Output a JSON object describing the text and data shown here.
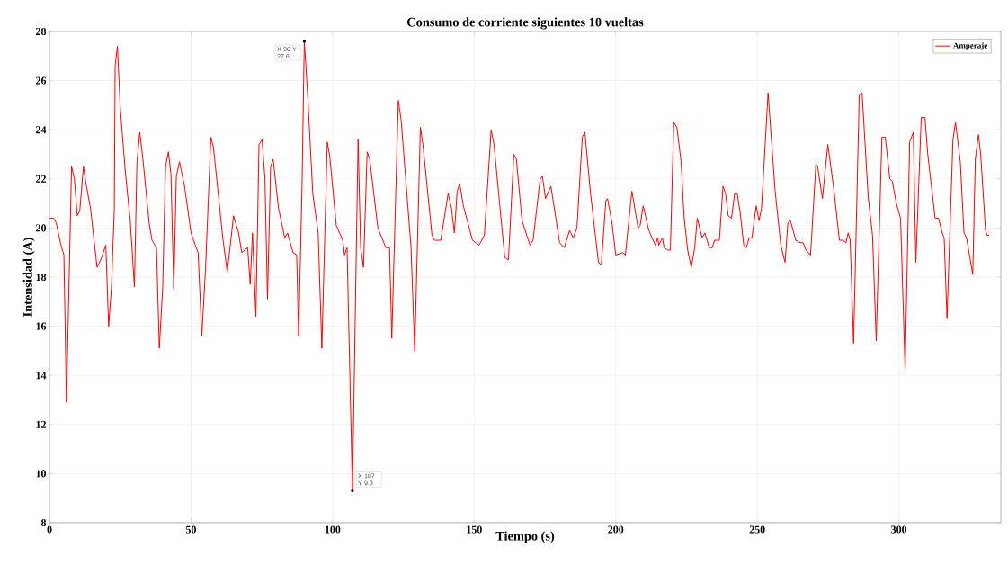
{
  "chart_data": {
    "type": "line",
    "title": "Consumo de corriente siguientes 10 vueltas",
    "xlabel": "Tiempo (s)",
    "ylabel": "Intensidad (A)",
    "x": [
      0,
      1.5,
      2.4,
      3.3,
      4.3,
      5.1,
      6,
      7.8,
      8.8,
      9.8,
      10.7,
      12,
      12.9,
      14.5,
      16.8,
      18.1,
      19.9,
      20.9,
      21.9,
      22.9,
      23.2,
      24,
      25,
      26.7,
      28.6,
      30,
      30.9,
      31.9,
      33,
      35.2,
      36.2,
      37.8,
      38.8,
      40,
      41,
      42,
      42.9,
      43.9,
      44.8,
      45.9,
      47.7,
      50,
      51.5,
      52.5,
      53.8,
      55.1,
      57,
      57.9,
      59.6,
      61.2,
      62.8,
      65,
      66.8,
      67.9,
      70,
      70.9,
      71.7,
      72.9,
      74,
      75.1,
      76.1,
      77,
      78.1,
      79,
      80.9,
      83.1,
      84.1,
      86,
      87.3,
      88,
      89.2,
      90,
      91.1,
      93,
      94.9,
      96.2,
      98.1,
      99,
      101.3,
      103.6,
      104.2,
      105.1,
      107,
      109,
      109.9,
      110.9,
      112.2,
      113.1,
      116,
      118.8,
      120.1,
      120.9,
      123.2,
      124.2,
      127.7,
      129,
      131,
      131.9,
      135.1,
      136,
      138.2,
      140.8,
      142,
      143,
      144,
      144.9,
      146.2,
      149.4,
      151.7,
      153.6,
      156,
      157,
      160.8,
      162.1,
      164,
      164.9,
      166.9,
      169.7,
      170.8,
      173.3,
      174.1,
      175.2,
      177.1,
      180.2,
      181.8,
      183.7,
      185,
      186.3,
      188.2,
      189.1,
      191.1,
      193.9,
      194.9,
      196.5,
      197.1,
      198.7,
      200,
      202.5,
      203.4,
      205.7,
      207.9,
      208.6,
      209.7,
      211.7,
      214,
      214.8,
      215.2,
      216.5,
      217.1,
      218.4,
      219.3,
      220.5,
      221.6,
      223.1,
      224.1,
      225.4,
      226.7,
      227.9,
      228.8,
      230.5,
      231.5,
      233,
      234.1,
      234.9,
      236.6,
      237.9,
      238.8,
      239.7,
      240.9,
      242,
      242.9,
      244,
      245.2,
      246.1,
      247.1,
      248.1,
      249.6,
      250.6,
      251.5,
      253.8,
      256.3,
      258.3,
      259.8,
      260.8,
      261.7,
      263.6,
      265.2,
      266.2,
      267.2,
      268.8,
      270.7,
      271.3,
      273,
      274.9,
      277,
      279,
      280.2,
      281.3,
      282.1,
      282.8,
      284,
      286,
      287,
      289.2,
      290.7,
      292,
      294,
      295.2,
      296.8,
      297.7,
      299.1,
      300.6,
      302.2,
      303.8,
      305.1,
      306,
      307.9,
      309.2,
      310.2,
      312.8,
      314,
      315.3,
      316,
      317,
      319.1,
      320,
      321.7,
      323,
      323.9,
      326.1,
      327,
      328.1,
      328.9,
      330.6,
      331.2,
      331.9
    ],
    "series": [
      {
        "name": "Amperaje",
        "color": "#ff0000",
        "values": [
          20.4,
          20.4,
          20.2,
          19.7,
          19.2,
          18.9,
          12.9,
          22.5,
          22.0,
          20.5,
          20.7,
          22.5,
          21.8,
          20.8,
          18.4,
          18.7,
          19.3,
          16.0,
          17.6,
          20.8,
          26.6,
          27.4,
          24.9,
          22.4,
          20.2,
          17.6,
          22.7,
          23.9,
          22.8,
          20.2,
          19.5,
          19.2,
          15.1,
          17.6,
          22.5,
          23.1,
          22.2,
          17.5,
          22.1,
          22.7,
          21.7,
          19.8,
          19.3,
          19.0,
          15.6,
          18.3,
          23.7,
          23.3,
          21.4,
          19.6,
          18.2,
          20.5,
          19.8,
          19.0,
          19.2,
          17.7,
          19.8,
          16.4,
          23.4,
          23.6,
          22.0,
          17.1,
          22.5,
          22.8,
          20.8,
          19.6,
          19.8,
          19.0,
          18.9,
          15.6,
          21.7,
          27.6,
          25.6,
          21.4,
          19.8,
          15.1,
          23.5,
          22.9,
          20.1,
          19.5,
          18.9,
          19.2,
          9.3,
          23.6,
          19.2,
          18.4,
          23.1,
          22.8,
          20.0,
          19.2,
          19.2,
          15.5,
          25.2,
          24.4,
          19.2,
          15.0,
          24.1,
          23.4,
          19.7,
          19.5,
          19.5,
          21.4,
          20.8,
          19.8,
          21.5,
          21.8,
          20.9,
          19.5,
          19.3,
          19.7,
          24.0,
          23.4,
          18.8,
          18.7,
          23.0,
          22.8,
          20.3,
          19.3,
          19.5,
          22.0,
          22.1,
          21.2,
          21.7,
          19.4,
          19.2,
          19.9,
          19.6,
          20.0,
          23.7,
          23.9,
          21.4,
          18.6,
          18.5,
          21.1,
          21.2,
          20.2,
          18.9,
          19.0,
          18.9,
          21.5,
          20.0,
          20.1,
          20.9,
          19.9,
          19.3,
          19.6,
          19.3,
          19.6,
          19.2,
          19.1,
          19.1,
          24.3,
          24.1,
          22.7,
          20.5,
          19.1,
          18.4,
          19.2,
          20.4,
          19.6,
          19.8,
          19.2,
          19.2,
          19.5,
          19.5,
          21.7,
          21.4,
          20.5,
          20.4,
          21.4,
          21.4,
          20.6,
          19.3,
          19.2,
          19.6,
          19.6,
          20.9,
          20.3,
          20.8,
          25.5,
          21.5,
          19.3,
          18.6,
          20.2,
          20.3,
          19.5,
          19.4,
          19.4,
          19.1,
          18.9,
          22.6,
          22.5,
          21.2,
          23.4,
          21.6,
          19.5,
          19.5,
          19.4,
          19.8,
          19.5,
          15.3,
          25.4,
          25.5,
          21.2,
          19.7,
          15.4,
          23.7,
          23.7,
          22.0,
          21.9,
          21.0,
          20.4,
          14.2,
          23.5,
          23.9,
          18.6,
          24.5,
          24.5,
          23.0,
          20.4,
          20.4,
          19.8,
          19.6,
          16.3,
          23.6,
          24.3,
          22.7,
          19.8,
          19.6,
          18.1,
          22.8,
          23.8,
          23.0,
          19.9,
          19.7,
          19.7
        ]
      }
    ],
    "xlim": [
      0,
      336
    ],
    "ylim": [
      8,
      28
    ],
    "xticks": [
      0,
      50,
      100,
      150,
      200,
      250,
      300
    ],
    "yticks": [
      8,
      10,
      12,
      14,
      16,
      18,
      20,
      22,
      24,
      26,
      28
    ],
    "grid": true,
    "legend": "top right",
    "line_style": "solid",
    "marker": "none",
    "annotations": [
      {
        "text": "X 90 Y 27.6",
        "x": 90,
        "y": 27.6
      },
      {
        "text": "X 107 Y 9.3",
        "x": 107,
        "y": 9.3
      }
    ]
  }
}
